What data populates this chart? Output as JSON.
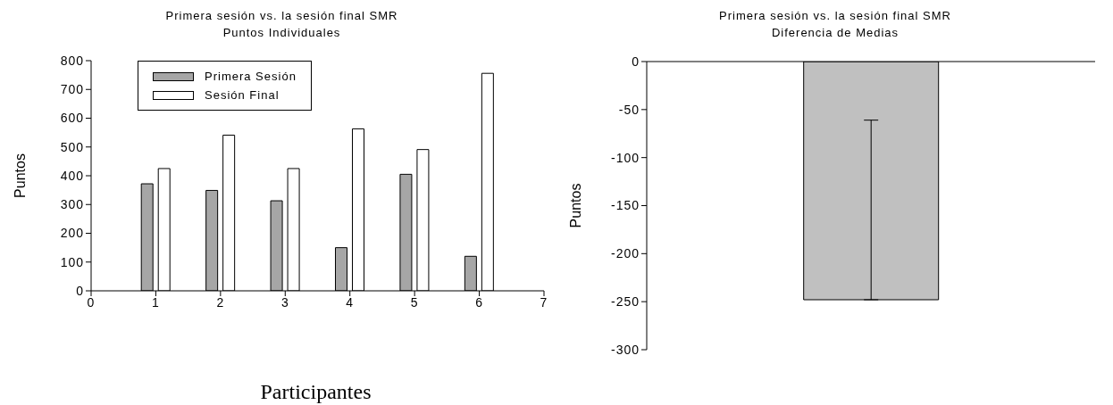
{
  "chart_data": [
    {
      "type": "bar",
      "title": "Primera sesión vs. la sesión final SMR\nPuntos Individuales",
      "xlabel": "Participantes",
      "ylabel": "Puntos",
      "x": [
        1,
        2,
        3,
        4,
        5,
        6
      ],
      "xlim": [
        0,
        7
      ],
      "xticks": [
        0,
        1,
        2,
        3,
        4,
        5,
        6,
        7
      ],
      "ylim": [
        0,
        800
      ],
      "yticks": [
        0,
        100,
        200,
        300,
        400,
        500,
        600,
        700,
        800
      ],
      "grid": false,
      "legend": "top left",
      "series": [
        {
          "name": "Primera Sesión",
          "color": "#a6a6a6",
          "values": [
            372,
            349,
            313,
            150,
            405,
            120
          ]
        },
        {
          "name": "Sesión Final",
          "color": "#ffffff",
          "values": [
            425,
            541,
            425,
            563,
            491,
            756
          ]
        }
      ]
    },
    {
      "type": "bar",
      "title": "Primera sesión vs. la sesión final SMR\nDiferencia de Medias",
      "ylabel": "Puntos",
      "categories": [
        null
      ],
      "values": [
        -248
      ],
      "errors": [
        [
          -248,
          -61
        ]
      ],
      "color": "#c0c0c0",
      "ylim": [
        -300,
        0
      ],
      "yticks": [
        -300,
        -250,
        -200,
        -150,
        -100,
        -50,
        0
      ],
      "grid": false,
      "tick_labels": "y"
    }
  ]
}
